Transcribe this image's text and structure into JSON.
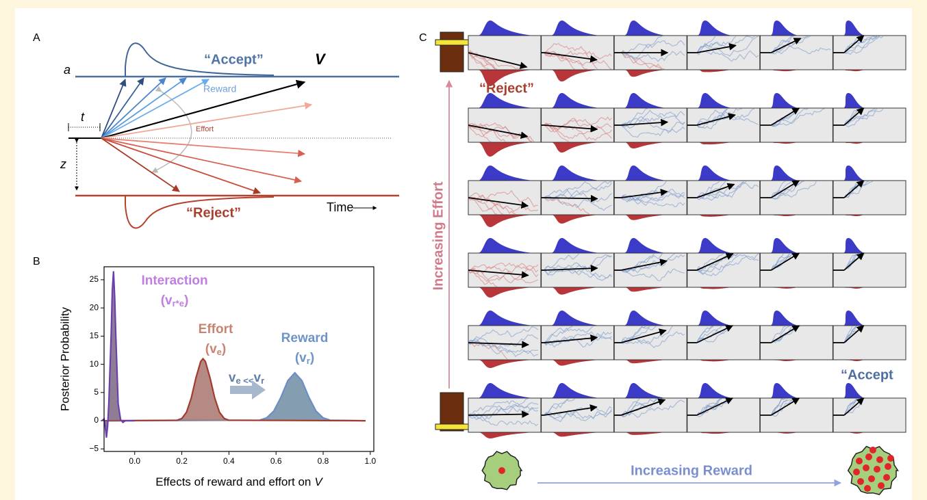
{
  "panel_a": {
    "label": "A",
    "threshold_upper": "a",
    "accept": "“Accept”",
    "drift": "V",
    "reward": "Reward",
    "nondecision": "t",
    "effort": "Effort",
    "start": "z",
    "reject": "“Reject”",
    "time": "Time"
  },
  "chart_data": {
    "type": "line",
    "panel_label": "B",
    "x_label": "Effects of reward and effort on",
    "x_label_symbol": "V",
    "y_label": "Posterior Probability",
    "xlim": [
      -0.13,
      1.015
    ],
    "ylim": [
      -5.45,
      27.3
    ],
    "xticks": [
      {
        "value": 0,
        "label": "0.0"
      },
      0.2,
      0.4,
      0.6,
      0.8,
      {
        "value": 1,
        "label": "1.0"
      }
    ],
    "yticks": [
      {
        "value": -5,
        "label": "−5"
      },
      0,
      5,
      10,
      15,
      20,
      25
    ],
    "series": [
      {
        "color": "#6a8fc4",
        "fill": "#6f8ca3",
        "x": [
          -0.13,
          0.53,
          0.56,
          0.59,
          0.62,
          0.65,
          0.68,
          0.71,
          0.74,
          0.77,
          0.8,
          0.83,
          0.98
        ],
        "values": [
          0,
          0.09,
          0.5,
          1.7,
          4.1,
          7.1,
          8.5,
          7.1,
          4.1,
          1.7,
          0.5,
          0.09,
          0
        ]
      },
      {
        "color": "#a33a2e",
        "fill": "#a8746f",
        "x": [
          -0.13,
          0.18,
          0.2,
          0.22,
          0.24,
          0.26,
          0.28,
          0.29,
          0.3,
          0.32,
          0.34,
          0.36,
          0.38,
          0.4,
          0.98
        ],
        "values": [
          0,
          0.08,
          0.4,
          1.5,
          4,
          7.6,
          10.5,
          11,
          10.5,
          7.6,
          4,
          1.5,
          0.4,
          0.08,
          0
        ]
      },
      {
        "color": "#6a3fb0",
        "fill": "#7b6680",
        "x": [
          -0.14,
          -0.13,
          -0.125,
          -0.12,
          -0.115,
          -0.11,
          -0.1,
          -0.095,
          -0.09,
          -0.085,
          -0.08,
          -0.07,
          -0.06,
          -0.05,
          -0.04,
          0.0
        ],
        "values": [
          0,
          0.3,
          -1,
          -3,
          -1,
          3,
          15,
          23,
          26.5,
          22,
          15,
          3,
          0.2,
          -0.3,
          0,
          0
        ]
      }
    ],
    "annotations": [
      {
        "lines": [
          [
            "Interaction"
          ],
          [
            "(v",
            "r*e",
            ")"
          ]
        ]
      },
      {
        "lines": [
          [
            "Effort"
          ],
          [
            "(v",
            "e",
            ")"
          ]
        ]
      },
      {
        "lines": [
          [
            "Reward"
          ],
          [
            "(v",
            "r",
            ")"
          ]
        ]
      },
      {
        "lines": [
          [
            "v",
            "e <<",
            "v",
            "r"
          ]
        ]
      }
    ]
  },
  "panel_c": {
    "label": "C",
    "reject": "“Reject”",
    "accept": "“Accept",
    "effort_axis": "Increasing Effort",
    "reward_axis": "Increasing Reward"
  }
}
